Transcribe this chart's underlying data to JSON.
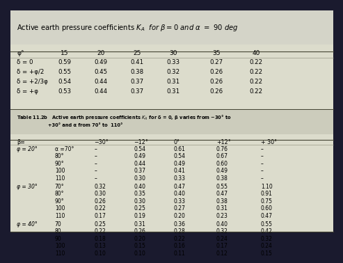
{
  "bg_color": "#1a1a2e",
  "table_bg": "#dcdccc",
  "title_bg": "#d4d4c8",
  "t2_bg": "#ccccbc",
  "title_line1": "Active earth pressure coefficients $K_A$  $\\mathit{for\\ \\beta=0\\ and\\ \\alpha\\ =\\ 90\\ deg}$",
  "top_table": {
    "col_headers": [
      "φ°",
      "15",
      "20",
      "25",
      "30",
      "35",
      "40"
    ],
    "row_labels": [
      "δ = 0",
      "δ = +φ/2",
      "δ = +2/3φ",
      "δ = +φ"
    ],
    "data": [
      [
        "0.59",
        "0.49",
        "0.41",
        "0.33",
        "0.27",
        "0.22"
      ],
      [
        "0.55",
        "0.45",
        "0.38",
        "0.32",
        "0.26",
        "0.22"
      ],
      [
        "0.54",
        "0.44",
        "0.37",
        "0.31",
        "0.26",
        "0.22"
      ],
      [
        "0.53",
        "0.44",
        "0.37",
        "0.31",
        "0.26",
        "0.22"
      ]
    ]
  },
  "t2_line1": "Table 11.2b   Active earth pressure coefficients $K_A$ for δ = 0, β varies from −30° to",
  "t2_line2": "                    +30° and α from 70° to  110°",
  "bottom_table": {
    "col_headers": [
      "β=",
      "",
      "−30°",
      "−12°",
      "0°",
      "+12°",
      "+ 30°"
    ],
    "sections": [
      {
        "phi_label": "φ = 20°",
        "rows": [
          [
            "α =70°",
            "–",
            "0.54",
            "0.61",
            "0.76",
            "–"
          ],
          [
            "80°",
            "–",
            "0.49",
            "0.54",
            "0.67",
            "–"
          ],
          [
            "90°",
            "–",
            "0.44",
            "0.49",
            "0.60",
            "–"
          ],
          [
            "100",
            "–",
            "0.37",
            "0.41",
            "0.49",
            "–"
          ],
          [
            "110",
            "–",
            "0.30",
            "0.33",
            "0.38",
            "–"
          ]
        ]
      },
      {
        "phi_label": "φ = 30°",
        "rows": [
          [
            "70°",
            "0.32",
            "0.40",
            "0.47",
            "0.55",
            "1.10"
          ],
          [
            "80°",
            "0.30",
            "0.35",
            "0.40",
            "0.47",
            "0.91"
          ],
          [
            "90°",
            "0.26",
            "0.30",
            "0.33",
            "0.38",
            "0.75"
          ],
          [
            "100",
            "0.22",
            "0.25",
            "0.27",
            "0.31",
            "0.60"
          ],
          [
            "110",
            "0.17",
            "0.19",
            "0.20",
            "0.23",
            "0.47"
          ]
        ]
      },
      {
        "phi_label": "φ = 40°",
        "rows": [
          [
            "70",
            "0.25",
            "0.31",
            "0.36",
            "0.40",
            "0.55"
          ],
          [
            "80",
            "0.22",
            "0.26",
            "0.28",
            "0.32",
            "0.42"
          ],
          [
            "90",
            "0.18",
            "0.20",
            "0.22",
            "0.24",
            "0.32"
          ],
          [
            "100",
            "0.13",
            "0.15",
            "0.16",
            "0.17",
            "0.24"
          ],
          [
            "110",
            "0.10",
            "0.10",
            "0.11",
            "0.12",
            "0.15"
          ]
        ]
      }
    ]
  }
}
